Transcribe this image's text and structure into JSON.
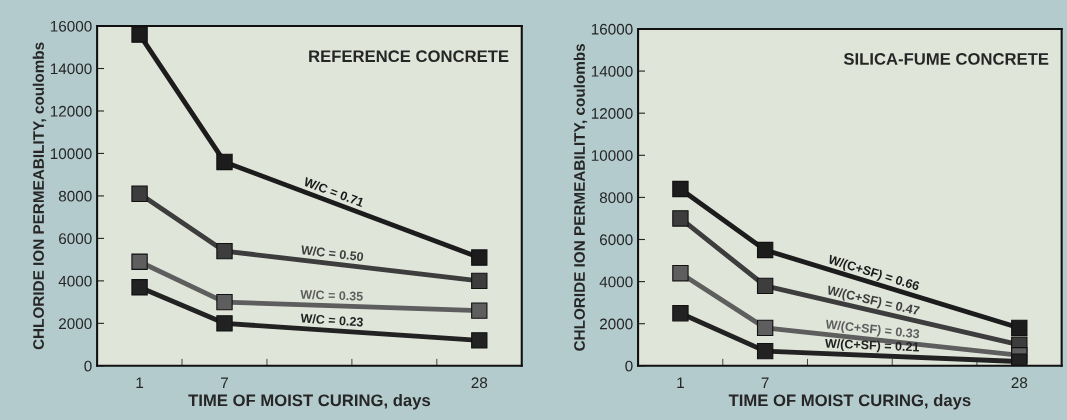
{
  "chart_data": [
    {
      "type": "line",
      "title": "REFERENCE CONCRETE",
      "xlabel": "TIME OF MOIST CURING, days",
      "ylabel": "CHLORIDE ION PERMEABILITY, coulombs",
      "categories": [
        "1",
        "7",
        null,
        null,
        "28"
      ],
      "ylim": [
        0,
        16000
      ],
      "yticks": [
        0,
        2000,
        4000,
        6000,
        8000,
        10000,
        12000,
        14000,
        16000
      ],
      "marker": "square",
      "line_style": "solid",
      "grid": false,
      "legend": false,
      "series": [
        {
          "name": "W/C = 0.71",
          "color": "#1c1c1c",
          "values": [
            15600,
            9600,
            null,
            null,
            5100
          ]
        },
        {
          "name": "W/C = 0.50",
          "color": "#3d3d3d",
          "values": [
            8100,
            5400,
            null,
            null,
            4000
          ]
        },
        {
          "name": "W/C = 0.35",
          "color": "#5e5e5e",
          "values": [
            4900,
            3000,
            null,
            null,
            2600
          ]
        },
        {
          "name": "W/C = 0.23",
          "color": "#222222",
          "values": [
            3700,
            2000,
            null,
            null,
            1200
          ]
        }
      ]
    },
    {
      "type": "line",
      "title": "SILICA-FUME CONCRETE",
      "xlabel": "TIME OF MOIST CURING, days",
      "ylabel": "CHLORIDE ION PERMEABILITY, coulombs",
      "categories": [
        "1",
        "7",
        null,
        null,
        "28"
      ],
      "ylim": [
        0,
        16000
      ],
      "yticks": [
        0,
        2000,
        4000,
        6000,
        8000,
        10000,
        12000,
        14000,
        16000
      ],
      "marker": "square",
      "line_style": "solid",
      "grid": false,
      "legend": false,
      "series": [
        {
          "name": "W/(C+SF) = 0.66",
          "color": "#1c1c1c",
          "values": [
            8400,
            5500,
            null,
            null,
            1800
          ]
        },
        {
          "name": "W/(C+SF) = 0.47",
          "color": "#3d3d3d",
          "values": [
            7000,
            3800,
            null,
            null,
            1000
          ]
        },
        {
          "name": "W/(C+SF) = 0.33",
          "color": "#5e5e5e",
          "values": [
            4400,
            1800,
            null,
            null,
            500
          ]
        },
        {
          "name": "W/(C+SF) = 0.21",
          "color": "#222222",
          "values": [
            2500,
            700,
            null,
            null,
            200
          ]
        }
      ]
    }
  ]
}
